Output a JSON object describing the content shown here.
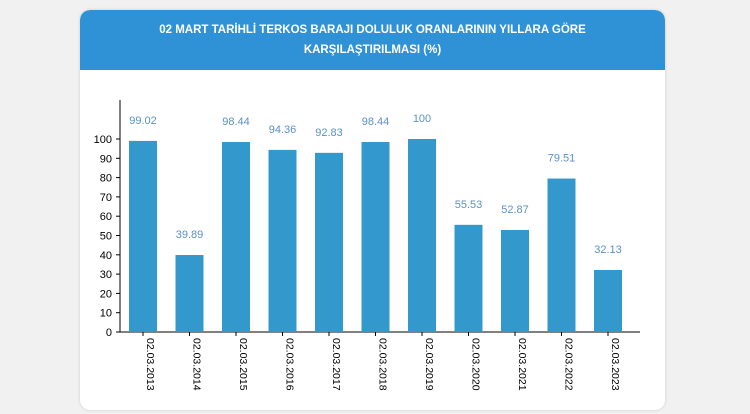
{
  "chart_data": {
    "type": "bar",
    "title": "02 MART TARİHLİ TERKOS BARAJI DOLULUK ORANLARININ YILLARA GÖRE KARŞILAŞTIRILMASI (%)",
    "categories": [
      "02.03.2013",
      "02.03.2014",
      "02.03.2015",
      "02.03.2016",
      "02.03.2017",
      "02.03.2018",
      "02.03.2019",
      "02.03.2020",
      "02.03.2021",
      "02.03.2022",
      "02.03.2023"
    ],
    "values": [
      99.02,
      39.89,
      98.44,
      94.36,
      92.83,
      98.44,
      100,
      55.53,
      52.87,
      79.51,
      32.13
    ],
    "value_labels": [
      "99.02",
      "39.89",
      "98.44",
      "94.36",
      "92.83",
      "98.44",
      "100",
      "55.53",
      "52.87",
      "79.51",
      "32.13"
    ],
    "y_ticks": [
      "0",
      "10",
      "20",
      "30",
      "40",
      "50",
      "60",
      "70",
      "80",
      "90",
      "100"
    ],
    "xlabel": "",
    "ylabel": "",
    "ylim": [
      0,
      100
    ],
    "grid": false,
    "bar_color": "#3399cc",
    "label_color": "#5a91c8",
    "header_color": "#2f92d6"
  }
}
